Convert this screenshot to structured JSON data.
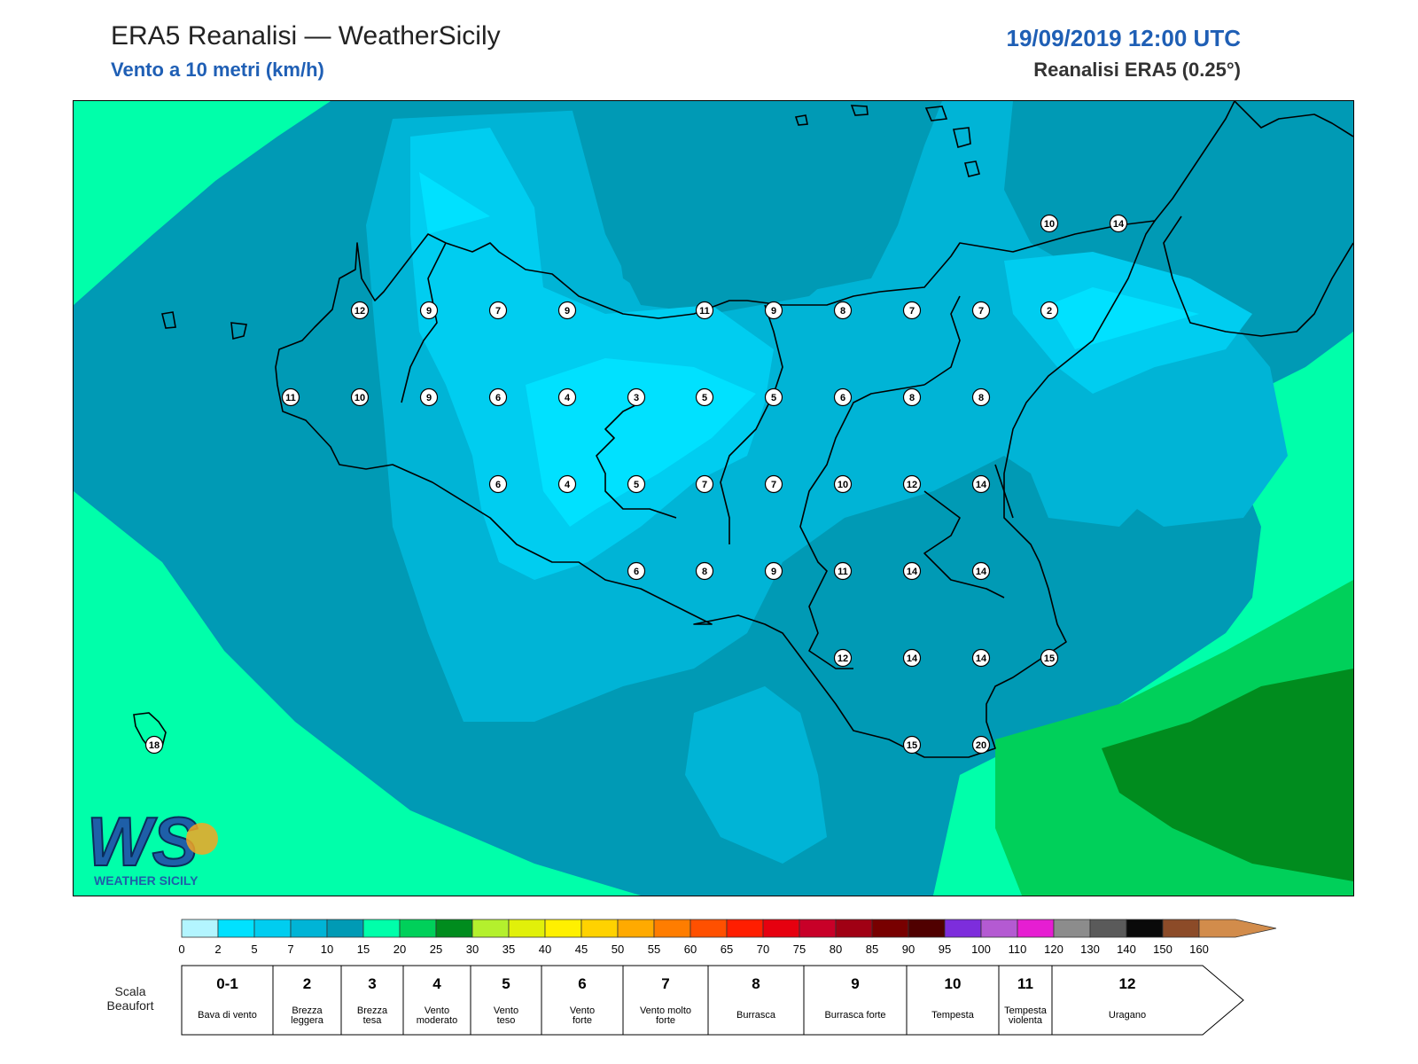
{
  "header": {
    "title": "ERA5 Reanalisi — WeatherSicily",
    "subtitle": "Vento a 10 metri (km/h)",
    "datetime": "19/09/2019 12:00 UTC",
    "source": "Reanalisi ERA5 (0.25°)"
  },
  "stations": [
    {
      "label": "12"
    },
    {
      "label": "9"
    },
    {
      "label": "7"
    },
    {
      "label": "9"
    },
    {
      "label": "11"
    },
    {
      "label": "9"
    },
    {
      "label": "8"
    },
    {
      "label": "7"
    },
    {
      "label": "7"
    },
    {
      "label": "2"
    },
    {
      "label": "11"
    },
    {
      "label": "10"
    },
    {
      "label": "9"
    },
    {
      "label": "6"
    },
    {
      "label": "4"
    },
    {
      "label": "3"
    },
    {
      "label": "5"
    },
    {
      "label": "5"
    },
    {
      "label": "6"
    },
    {
      "label": "8"
    },
    {
      "label": "8"
    },
    {
      "label": "6"
    },
    {
      "label": "4"
    },
    {
      "label": "5"
    },
    {
      "label": "7"
    },
    {
      "label": "7"
    },
    {
      "label": "10"
    },
    {
      "label": "12"
    },
    {
      "label": "14"
    },
    {
      "label": "6"
    },
    {
      "label": "8"
    },
    {
      "label": "9"
    },
    {
      "label": "11"
    },
    {
      "label": "14"
    },
    {
      "label": "14"
    },
    {
      "label": "12"
    },
    {
      "label": "14"
    },
    {
      "label": "14"
    },
    {
      "label": "15"
    },
    {
      "label": "15"
    },
    {
      "label": "20"
    },
    {
      "label": "10"
    },
    {
      "label": "14"
    },
    {
      "label": "18"
    }
  ],
  "colorbar": {
    "ticks": [
      "0",
      "2",
      "5",
      "7",
      "10",
      "15",
      "20",
      "25",
      "30",
      "35",
      "40",
      "45",
      "50",
      "55",
      "60",
      "65",
      "70",
      "75",
      "80",
      "85",
      "90",
      "95",
      "100",
      "110",
      "120",
      "130",
      "140",
      "150",
      "160"
    ],
    "colors": [
      "#b3f5ff",
      "#00e1ff",
      "#00cdf0",
      "#00b4d6",
      "#009ab5",
      "#00ffaa",
      "#00d05a",
      "#008c1e",
      "#b4f02d",
      "#e1f00a",
      "#fff000",
      "#ffd200",
      "#ffaa00",
      "#ff7d00",
      "#ff5000",
      "#ff1e00",
      "#e6000f",
      "#c80028",
      "#a00014",
      "#780000",
      "#500000",
      "#7d2ddc",
      "#b45ad2",
      "#e61ed2",
      "#8c8c8c",
      "#5a5a5a",
      "#0a0a0a",
      "#8c4b28",
      "#d28c4b"
    ]
  },
  "beaufort": {
    "title": "Scala Beaufort",
    "scale": [
      {
        "num": "0-1",
        "desc": "Bava di vento"
      },
      {
        "num": "2",
        "desc": "Brezza leggera"
      },
      {
        "num": "3",
        "desc": "Brezza tesa"
      },
      {
        "num": "4",
        "desc": "Vento moderato"
      },
      {
        "num": "5",
        "desc": "Vento teso"
      },
      {
        "num": "6",
        "desc": "Vento forte"
      },
      {
        "num": "7",
        "desc": "Vento molto forte"
      },
      {
        "num": "8",
        "desc": "Burrasca"
      },
      {
        "num": "9",
        "desc": "Burrasca forte"
      },
      {
        "num": "10",
        "desc": "Tempesta"
      },
      {
        "num": "11",
        "desc": "Tempesta violenta"
      },
      {
        "num": "12",
        "desc": "Uragano"
      }
    ]
  },
  "logo": {
    "text": "WEATHER SICILY",
    "monogram": "WS"
  }
}
